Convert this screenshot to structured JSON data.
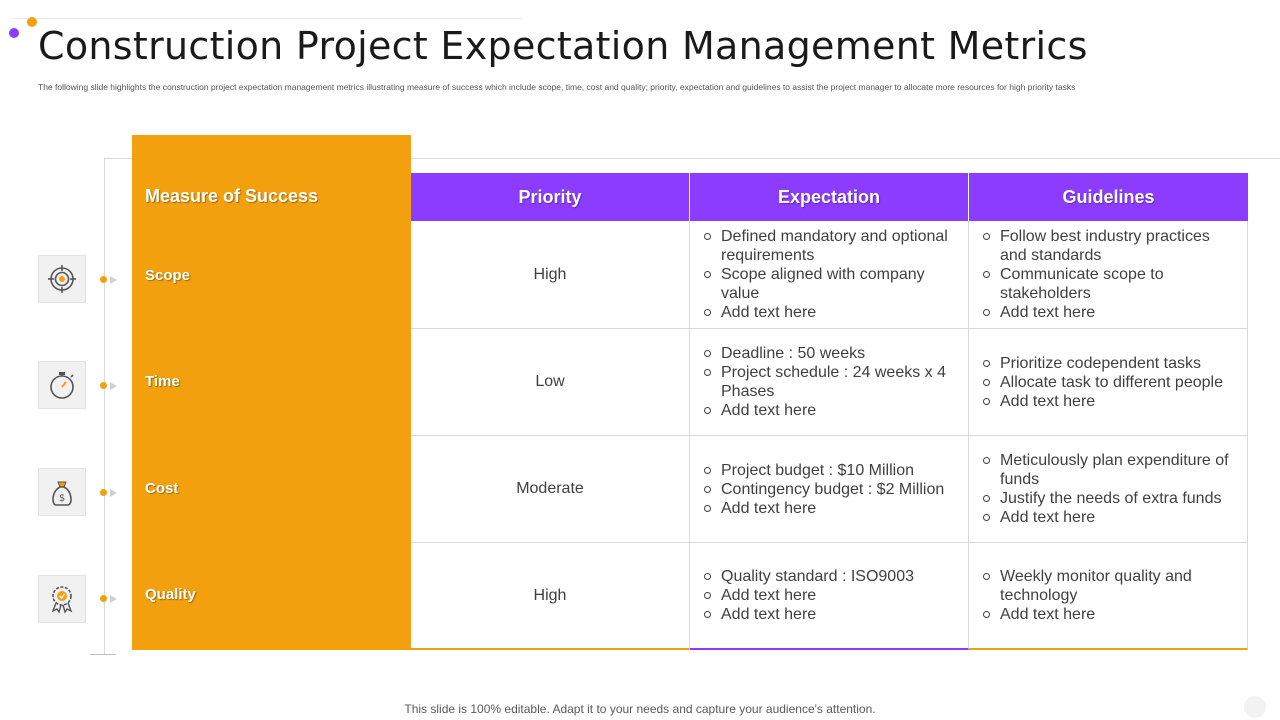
{
  "title": "Construction Project Expectation Management Metrics",
  "subtitle": "The following slide highlights the construction project expectation management metrics illustrating measure of success which include scope, time, cost and quality; priority, expectation and guidelines to assist the project manager to allocate more resources for high priority tasks",
  "colors": {
    "orange": "#f3a00e",
    "purple": "#8c3cff"
  },
  "table": {
    "headers": {
      "measure": "Measure of Success",
      "priority": "Priority",
      "expectation": "Expectation",
      "guidelines": "Guidelines"
    },
    "rows": [
      {
        "icon": "target-icon",
        "measure": "Scope",
        "priority": "High",
        "expectation": [
          "Defined mandatory and optional requirements",
          "Scope aligned with company value",
          "Add text here"
        ],
        "guidelines": [
          "Follow best industry practices and standards",
          "Communicate scope to stakeholders",
          "Add text here"
        ]
      },
      {
        "icon": "stopwatch-icon",
        "measure": "Time",
        "priority": "Low",
        "expectation": [
          "Deadline : 50 weeks",
          "Project schedule : 24 weeks x 4 Phases",
          "Add text here"
        ],
        "guidelines": [
          "Prioritize codependent tasks",
          "Allocate task to different  people",
          "Add text here"
        ]
      },
      {
        "icon": "money-bag-icon",
        "measure": "Cost",
        "priority": "Moderate",
        "expectation": [
          "Project budget : $10 Million",
          "Contingency budget : $2 Million",
          "Add text here"
        ],
        "guidelines": [
          "Meticulously plan expenditure of funds",
          "Justify the needs of extra funds",
          "Add text here"
        ]
      },
      {
        "icon": "quality-badge-icon",
        "measure": "Quality",
        "priority": "High",
        "expectation": [
          "Quality standard : ISO9003",
          "Add text here",
          "Add text here"
        ],
        "guidelines": [
          "Weekly monitor quality and technology",
          "Add text here"
        ]
      }
    ]
  },
  "footer": "This slide is 100% editable. Adapt it to your needs and capture your audience's attention."
}
